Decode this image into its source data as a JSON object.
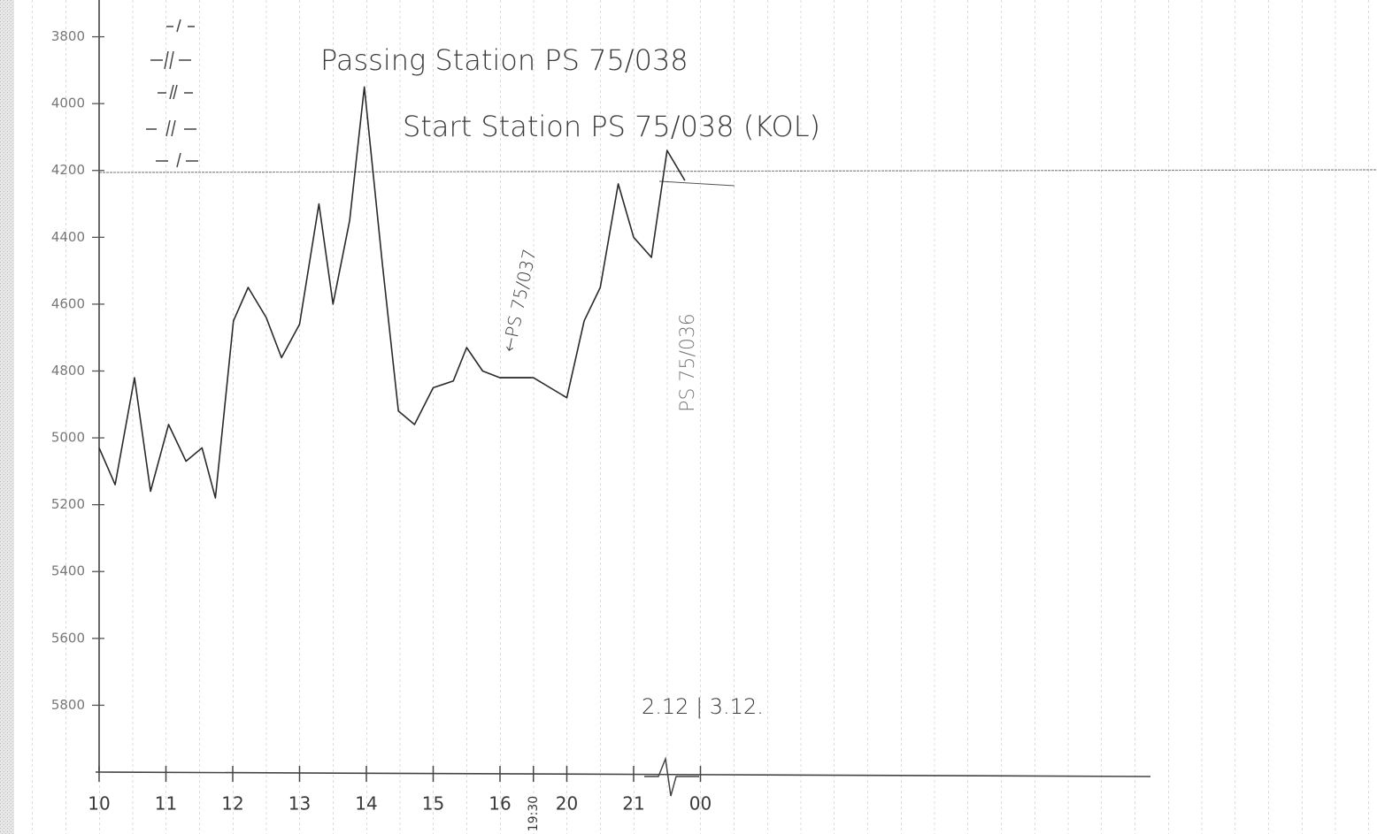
{
  "chart_data": {
    "type": "line",
    "annotations": [
      "Passing Station PS 75/038",
      "Start Station PS 75/038 (KOL)",
      "←PS 75/037",
      "PS 75/036",
      "2.12 | 3.12."
    ],
    "x": [
      10.0,
      10.24,
      10.53,
      10.77,
      11.04,
      11.3,
      11.54,
      11.74,
      12.01,
      12.23,
      12.5,
      12.73,
      13.0,
      13.29,
      13.5,
      13.75,
      13.97,
      14.24,
      14.48,
      14.72,
      15.0,
      15.3,
      15.5,
      15.74,
      16.0,
      19.5,
      20.0,
      20.26,
      20.5,
      20.77,
      21.0,
      21.8,
      22.5,
      23.3
    ],
    "values": [
      5030,
      5140,
      4820,
      5160,
      4960,
      5070,
      5030,
      5180,
      4650,
      4550,
      4640,
      4760,
      4660,
      4300,
      4600,
      4350,
      3950,
      4480,
      4920,
      4960,
      4850,
      4830,
      4730,
      4800,
      4820,
      4820,
      4880,
      4650,
      4550,
      4240,
      4400,
      4460,
      4140,
      4230
    ],
    "color": "#2a2a2a",
    "xlim": [
      10,
      24
    ],
    "xticks": [
      10,
      11,
      12,
      13,
      14,
      15,
      16,
      {
        "value": 19.5,
        "label": "19:30"
      },
      20,
      21,
      {
        "value": 24,
        "label": "00"
      }
    ],
    "ylim": [
      6000,
      3690
    ],
    "yticks": [
      3800,
      4000,
      4200,
      4400,
      4600,
      4800,
      5000,
      5200,
      5400,
      5600,
      5800
    ]
  }
}
